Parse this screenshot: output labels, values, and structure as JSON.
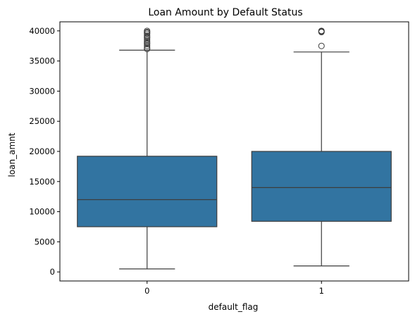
{
  "chart_data": {
    "type": "box",
    "title": "Loan Amount by Default Status",
    "xlabel": "default_flag",
    "ylabel": "loan_amnt",
    "categories": [
      "0",
      "1"
    ],
    "ylim": [
      -1500,
      41500
    ],
    "yticks": [
      0,
      5000,
      10000,
      15000,
      20000,
      25000,
      30000,
      35000,
      40000
    ],
    "grid": false,
    "box_color": "#3274a1",
    "line_color": "#3d3d3d",
    "boxes": [
      {
        "category": "0",
        "whisker_low": 500,
        "q1": 7500,
        "median": 12000,
        "q3": 19200,
        "whisker_high": 36800,
        "outliers": [
          37000,
          37200,
          37500,
          37800,
          38000,
          38200,
          38500,
          38800,
          39000,
          39200,
          39500,
          39700,
          39800,
          40000
        ]
      },
      {
        "category": "1",
        "whisker_low": 1000,
        "q1": 8400,
        "median": 14000,
        "q3": 20000,
        "whisker_high": 36500,
        "outliers": [
          37500,
          39800,
          39900,
          40000
        ]
      }
    ]
  }
}
